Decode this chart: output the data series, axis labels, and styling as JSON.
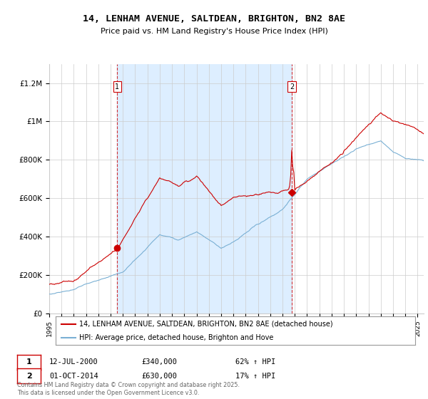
{
  "title": "14, LENHAM AVENUE, SALTDEAN, BRIGHTON, BN2 8AE",
  "subtitle": "Price paid vs. HM Land Registry's House Price Index (HPI)",
  "legend_line1": "14, LENHAM AVENUE, SALTDEAN, BRIGHTON, BN2 8AE (detached house)",
  "legend_line2": "HPI: Average price, detached house, Brighton and Hove",
  "footer": "Contains HM Land Registry data © Crown copyright and database right 2025.\nThis data is licensed under the Open Government Licence v3.0.",
  "marker1_date_label": "12-JUL-2000",
  "marker1_price_label": "£340,000",
  "marker1_hpi_label": "62% ↑ HPI",
  "marker1_year": 2000.54,
  "marker1_price": 340000,
  "marker2_date_label": "01-OCT-2014",
  "marker2_price_label": "£630,000",
  "marker2_hpi_label": "17% ↑ HPI",
  "marker2_year": 2014.75,
  "marker2_price": 630000,
  "red_line_color": "#cc0000",
  "blue_line_color": "#7ab0d4",
  "dashed_line_color": "#cc0000",
  "shade_color": "#ddeeff",
  "background_color": "#ffffff",
  "grid_color": "#cccccc",
  "ylim": [
    0,
    1300000
  ],
  "yticks": [
    0,
    200000,
    400000,
    600000,
    800000,
    1000000,
    1200000
  ],
  "ytick_labels": [
    "£0",
    "£200K",
    "£400K",
    "£600K",
    "£800K",
    "£1M",
    "£1.2M"
  ],
  "xmin": 1995,
  "xmax": 2025.5
}
